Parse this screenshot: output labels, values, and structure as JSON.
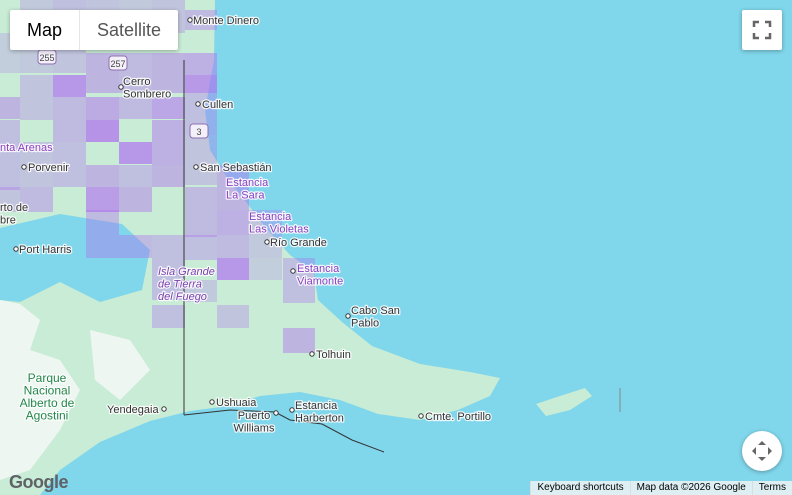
{
  "map_type_control": {
    "map": "Map",
    "satellite": "Satellite"
  },
  "road_shields": [
    "255",
    "257",
    "3"
  ],
  "places": [
    {
      "lines": [
        "Monte Dinero"
      ]
    },
    {
      "lines": [
        "Cerro",
        "Sombrero"
      ]
    },
    {
      "lines": [
        "Cullen"
      ]
    },
    {
      "lines": [
        "nta Arenas"
      ]
    },
    {
      "lines": [
        "Porvenir"
      ]
    },
    {
      "lines": [
        "San Sebastián"
      ]
    },
    {
      "lines": [
        "Estancia",
        "La Sara"
      ]
    },
    {
      "lines": [
        "rto de",
        "bre"
      ]
    },
    {
      "lines": [
        "Port Harris"
      ]
    },
    {
      "lines": [
        "Estancia",
        "Las Violetas"
      ]
    },
    {
      "lines": [
        "Río Grande"
      ]
    },
    {
      "lines": [
        "Isla Grande",
        "de Tierra",
        "del Fuego"
      ]
    },
    {
      "lines": [
        "Estancia",
        "Viamonte"
      ]
    },
    {
      "lines": [
        "Cabo San",
        "Pablo"
      ]
    },
    {
      "lines": [
        "Tolhuin"
      ]
    },
    {
      "lines": [
        "Parque",
        "Nacional",
        "Alberto de",
        "Agostini"
      ]
    },
    {
      "lines": [
        "Yendegaia"
      ]
    },
    {
      "lines": [
        "Ushuaia"
      ]
    },
    {
      "lines": [
        "Puerto",
        "Williams"
      ]
    },
    {
      "lines": [
        "Estancia",
        "Harberton"
      ]
    },
    {
      "lines": [
        "Cmte. Portillo"
      ]
    }
  ],
  "logo": "Google",
  "footer": {
    "shortcuts": "Keyboard shortcuts",
    "map_data": "Map data ©2026 Google",
    "terms": "Terms"
  }
}
